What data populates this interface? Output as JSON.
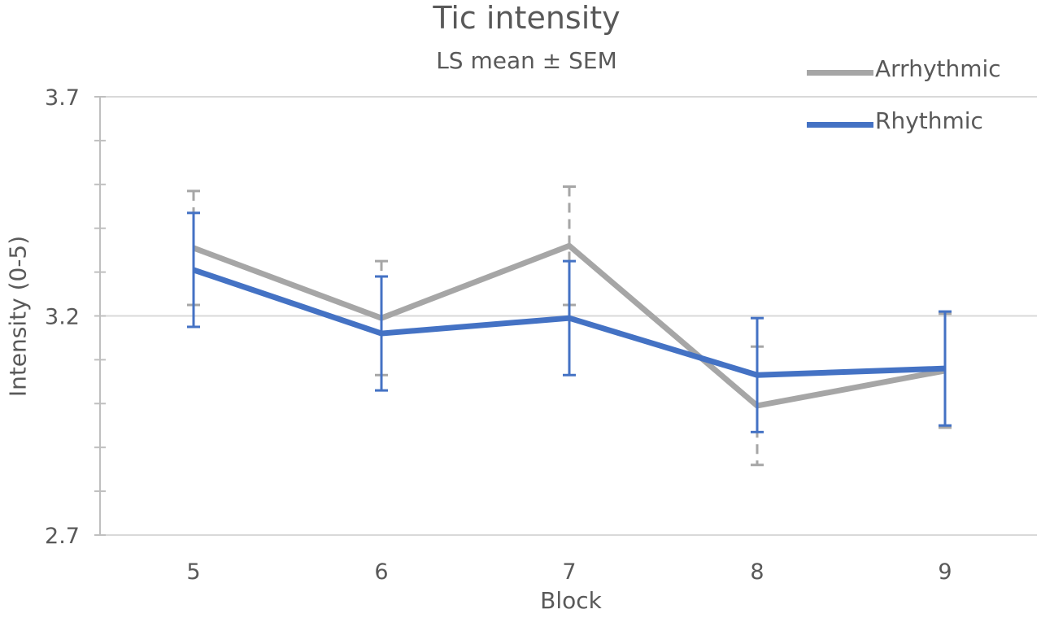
{
  "chart_data": {
    "type": "line",
    "title": "Tic intensity",
    "subtitle": "LS mean ± SEM",
    "xlabel": "Block",
    "ylabel": "Intensity (0-5)",
    "categories": [
      "5",
      "6",
      "7",
      "8",
      "9"
    ],
    "ylim": [
      2.7,
      3.7
    ],
    "yticks": [
      "2.7",
      "3.2",
      "3.7"
    ],
    "minor_tick_step": 0.1,
    "grid": true,
    "legend_position": "top-right",
    "series": [
      {
        "name": "Arrhythmic",
        "color": "#a6a6a6",
        "error_style": "dashed",
        "values": [
          3.355,
          3.195,
          3.36,
          2.995,
          3.075
        ],
        "sem": [
          0.13,
          0.13,
          0.135,
          0.135,
          0.13
        ]
      },
      {
        "name": "Rhythmic",
        "color": "#4472c4",
        "error_style": "solid",
        "values": [
          3.305,
          3.16,
          3.195,
          3.065,
          3.08
        ],
        "sem": [
          0.13,
          0.13,
          0.13,
          0.13,
          0.13
        ]
      }
    ]
  }
}
